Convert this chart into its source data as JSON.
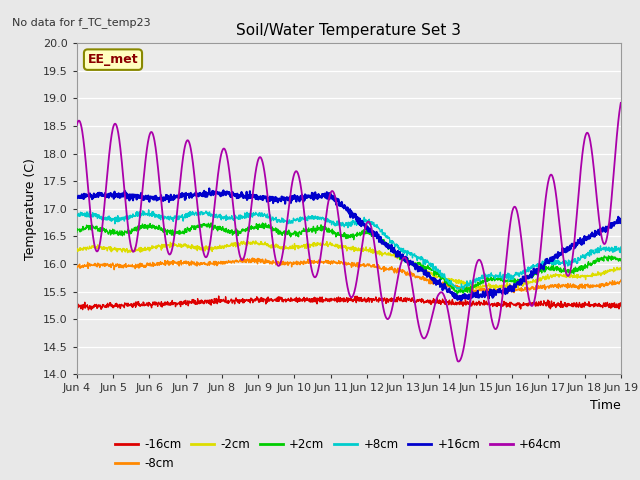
{
  "title": "Soil/Water Temperature Set 3",
  "xlabel": "Time",
  "ylabel": "Temperature (C)",
  "no_data_text": "No data for f_TC_temp23",
  "annotation_text": "EE_met",
  "ylim": [
    14.0,
    20.0
  ],
  "yticks": [
    14.0,
    14.5,
    15.0,
    15.5,
    16.0,
    16.5,
    17.0,
    17.5,
    18.0,
    18.5,
    19.0,
    19.5,
    20.0
  ],
  "xtick_labels": [
    "Jun 4",
    "Jun 5",
    "Jun 6",
    "Jun 7",
    "Jun 8",
    "Jun 9",
    "Jun 10",
    "Jun 11",
    "Jun 12",
    "Jun 13",
    "Jun 14",
    "Jun 15",
    "Jun 16",
    "Jun 17",
    "Jun 18",
    "Jun 19"
  ],
  "series": {
    "neg16cm": {
      "label": "-16cm",
      "color": "#dd0000"
    },
    "neg8cm": {
      "label": "-8cm",
      "color": "#ff8800"
    },
    "neg2cm": {
      "label": "-2cm",
      "color": "#dddd00"
    },
    "pos2cm": {
      "label": "+2cm",
      "color": "#00cc00"
    },
    "pos8cm": {
      "label": "+8cm",
      "color": "#00cccc"
    },
    "pos16cm": {
      "label": "+16cm",
      "color": "#0000cc"
    },
    "pos64cm": {
      "label": "+64cm",
      "color": "#aa00aa"
    }
  },
  "bg_color": "#e8e8e8",
  "plot_bg_color": "#ebebeb"
}
